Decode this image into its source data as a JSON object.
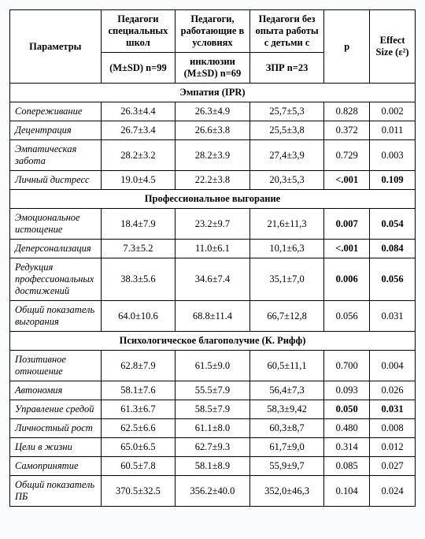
{
  "header": {
    "param": "Параметры",
    "g1_top": "Педагоги специальных школ",
    "g2_top": "Педагоги, работающие в условиях",
    "g3_top": "Педагоги без опыта работы с детьми с",
    "p": "p",
    "eff": "Effect Size (ε²)",
    "g1_sub": "(M±SD) n=99",
    "g2_sub": "инклюзии (M±SD) n=69",
    "g3_sub": "ЗПР n=23"
  },
  "sections": {
    "s1": "Эмпатия (IPR)",
    "s2": "Профессиональное выгорание",
    "s3": "Психологическое благополучие (К. Рифф)"
  },
  "rows": {
    "r1": {
      "param": "Сопереживание",
      "g1": "26.3±4.4",
      "g2": "26.3±4.9",
      "g3": "25,7±5,3",
      "p": "0.828",
      "e": "0.002"
    },
    "r2": {
      "param": "Децентрация",
      "g1": "26.7±3.4",
      "g2": "26.6±3.8",
      "g3": "25,5±3,8",
      "p": "0.372",
      "e": "0.011"
    },
    "r3": {
      "param": "Эмпатическая забота",
      "g1": "28.2±3.2",
      "g2": "28.2±3.9",
      "g3": "27,4±3,9",
      "p": "0.729",
      "e": "0.003"
    },
    "r4": {
      "param": "Личный дистресс",
      "g1": "19.0±4.5",
      "g2": "22.2±3.8",
      "g3": "20,3±5,3",
      "p": "<.001",
      "e": "0.109",
      "pb": true,
      "eb": true
    },
    "r5": {
      "param": "Эмоциональное истощение",
      "g1": "18.4±7.9",
      "g2": "23.2±9.7",
      "g3": "21,6±11,3",
      "p": "0.007",
      "e": "0.054",
      "pb": true,
      "eb": true
    },
    "r6": {
      "param": "Деперсонализация",
      "g1": "7.3±5.2",
      "g2": "11.0±6.1",
      "g3": "10,1±6,3",
      "p": "<.001",
      "e": "0.084",
      "pb": true,
      "eb": true
    },
    "r7": {
      "param": "Редукция профессиональных достижений",
      "g1": "38.3±5.6",
      "g2": "34.6±7.4",
      "g3": "35,1±7,0",
      "p": "0.006",
      "e": "0.056",
      "pb": true,
      "eb": true
    },
    "r8": {
      "param": "Общий показатель выгорания",
      "g1": "64.0±10.6",
      "g2": "68.8±11.4",
      "g3": "66,7±12,8",
      "p": "0.056",
      "e": "0.031"
    },
    "r9": {
      "param": "Позитивное отношение",
      "g1": "62.8±7.9",
      "g2": "61.5±9.0",
      "g3": "60,5±11,1",
      "p": "0.700",
      "e": "0.004"
    },
    "r10": {
      "param": "Автономия",
      "g1": "58.1±7.6",
      "g2": "55.5±7.9",
      "g3": "56,4±7,3",
      "p": "0.093",
      "e": "0.026"
    },
    "r11": {
      "param": "Управление средой",
      "g1": "61.3±6.7",
      "g2": "58.5±7.9",
      "g3": "58,3±9,42",
      "p": "0.050",
      "e": "0.031",
      "pb": true,
      "eb": true
    },
    "r12": {
      "param": "Личностный рост",
      "g1": "62.5±6.6",
      "g2": "61.1±8.0",
      "g3": "60,3±8,7",
      "p": "0.480",
      "e": "0.008"
    },
    "r13": {
      "param": "Цели в жизни",
      "g1": "65.0±6.5",
      "g2": "62.7±9.3",
      "g3": "61,7±9,0",
      "p": "0.314",
      "e": "0.012"
    },
    "r14": {
      "param": "Самопринятие",
      "g1": "60.5±7.8",
      "g2": "58.1±8.9",
      "g3": "55,9±9,7",
      "p": "0.085",
      "e": "0.027"
    },
    "r15": {
      "param": "Общий показатель ПБ",
      "g1": "370.5±32.5",
      "g2": "356.2±40.0",
      "g3": "352,0±46,3",
      "p": "0.104",
      "e": "0.024"
    }
  }
}
